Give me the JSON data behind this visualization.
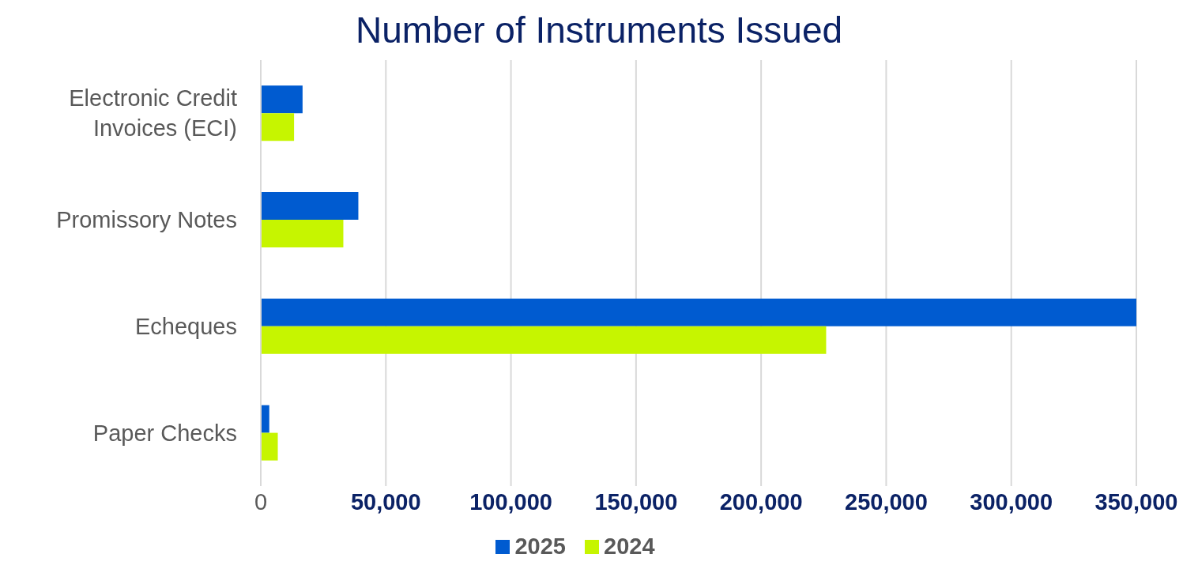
{
  "chart_data": {
    "type": "bar",
    "orientation": "horizontal",
    "title": "Number of Instruments Issued",
    "categories": [
      "Electronic Credit Invoices (ECI)",
      "Promissory Notes",
      "Echeques",
      "Paper Checks"
    ],
    "series": [
      {
        "name": "2025",
        "color": "#005bd0",
        "values": [
          16700,
          39000,
          350000,
          3400
        ]
      },
      {
        "name": "2024",
        "color": "#c6f500",
        "values": [
          13300,
          33000,
          226000,
          6800
        ]
      }
    ],
    "xlim": [
      0,
      350000
    ],
    "xticks": [
      0,
      {
        "value": 50000,
        "label": "50,000"
      },
      {
        "value": 100000,
        "label": "100,000"
      },
      {
        "value": 150000,
        "label": "150,000"
      },
      {
        "value": 200000,
        "label": "200,000"
      },
      {
        "value": 250000,
        "label": "250,000"
      },
      {
        "value": 300000,
        "label": "300,000"
      },
      {
        "value": 350000,
        "label": "350,000"
      }
    ],
    "grid": "x",
    "legend": "bottom"
  }
}
